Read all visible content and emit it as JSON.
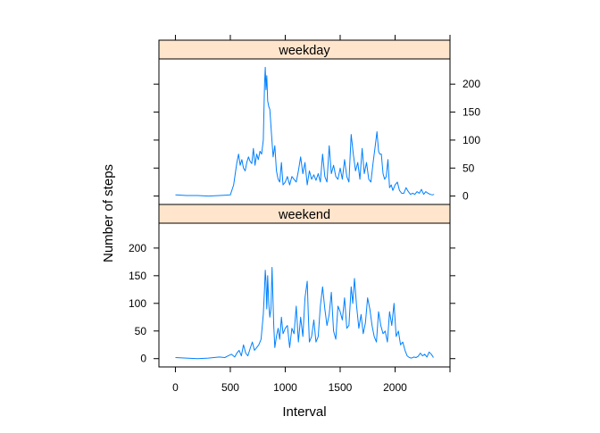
{
  "chart_data": {
    "type": "line",
    "layout": "lattice-two-panels-stacked",
    "xlabel": "Interval",
    "ylabel": "Number of steps",
    "xlim": [
      -150,
      2500
    ],
    "ylim": [
      -15,
      245
    ],
    "x_ticks": [
      0,
      500,
      1000,
      1500,
      2000
    ],
    "y_ticks": [
      0,
      50,
      100,
      150,
      200
    ],
    "colors": {
      "line": "#0080ff",
      "strip": "#ffe5cc"
    },
    "panels": [
      {
        "strip_label": "weekday",
        "x": [
          0,
          100,
          200,
          300,
          400,
          500,
          530,
          545,
          560,
          575,
          590,
          605,
          620,
          635,
          650,
          665,
          680,
          695,
          710,
          725,
          740,
          755,
          770,
          785,
          800,
          812,
          818,
          825,
          832,
          840,
          850,
          860,
          875,
          890,
          905,
          920,
          935,
          950,
          965,
          980,
          1000,
          1020,
          1040,
          1060,
          1080,
          1100,
          1120,
          1140,
          1160,
          1180,
          1200,
          1220,
          1240,
          1260,
          1280,
          1300,
          1320,
          1340,
          1360,
          1380,
          1400,
          1420,
          1440,
          1460,
          1480,
          1500,
          1520,
          1540,
          1560,
          1580,
          1600,
          1620,
          1640,
          1660,
          1680,
          1700,
          1720,
          1740,
          1760,
          1780,
          1800,
          1820,
          1835,
          1850,
          1860,
          1875,
          1890,
          1905,
          1920,
          1935,
          1950,
          1965,
          1980,
          2000,
          2020,
          2040,
          2060,
          2080,
          2100,
          2120,
          2140,
          2160,
          2180,
          2200,
          2220,
          2240,
          2260,
          2280,
          2300,
          2320,
          2340,
          2355
        ],
        "y": [
          2,
          1,
          1,
          0,
          1,
          2,
          20,
          40,
          60,
          75,
          55,
          65,
          50,
          45,
          60,
          70,
          62,
          58,
          85,
          55,
          75,
          65,
          80,
          75,
          100,
          200,
          230,
          190,
          215,
          170,
          160,
          155,
          110,
          70,
          90,
          45,
          30,
          25,
          60,
          20,
          25,
          35,
          20,
          35,
          30,
          25,
          45,
          70,
          40,
          60,
          20,
          45,
          30,
          38,
          28,
          40,
          25,
          75,
          35,
          25,
          90,
          40,
          55,
          35,
          30,
          50,
          30,
          65,
          35,
          25,
          110,
          75,
          45,
          60,
          30,
          85,
          40,
          60,
          30,
          25,
          60,
          90,
          115,
          80,
          75,
          75,
          40,
          30,
          35,
          65,
          15,
          20,
          10,
          20,
          25,
          10,
          5,
          5,
          15,
          8,
          3,
          5,
          3,
          8,
          5,
          12,
          3,
          8,
          5,
          3,
          2,
          3
        ]
      },
      {
        "strip_label": "weekend",
        "x": [
          0,
          100,
          200,
          300,
          400,
          450,
          480,
          510,
          540,
          560,
          580,
          600,
          620,
          640,
          660,
          680,
          700,
          720,
          740,
          760,
          780,
          800,
          810,
          818,
          825,
          832,
          840,
          850,
          860,
          870,
          880,
          895,
          905,
          920,
          935,
          950,
          965,
          980,
          1000,
          1020,
          1040,
          1060,
          1080,
          1100,
          1120,
          1140,
          1160,
          1180,
          1200,
          1210,
          1220,
          1240,
          1260,
          1280,
          1300,
          1320,
          1340,
          1360,
          1380,
          1400,
          1420,
          1440,
          1460,
          1480,
          1500,
          1520,
          1540,
          1560,
          1580,
          1600,
          1615,
          1630,
          1650,
          1670,
          1690,
          1710,
          1730,
          1750,
          1770,
          1790,
          1810,
          1830,
          1850,
          1870,
          1890,
          1910,
          1930,
          1950,
          1970,
          1990,
          2000,
          2010,
          2030,
          2050,
          2070,
          2090,
          2110,
          2130,
          2150,
          2170,
          2190,
          2210,
          2230,
          2250,
          2270,
          2290,
          2310,
          2330,
          2350
        ],
        "y": [
          2,
          1,
          0,
          1,
          3,
          2,
          5,
          8,
          3,
          10,
          15,
          5,
          25,
          10,
          5,
          18,
          30,
          15,
          20,
          25,
          35,
          80,
          120,
          160,
          140,
          90,
          150,
          100,
          75,
          90,
          165,
          60,
          20,
          40,
          55,
          35,
          75,
          45,
          55,
          60,
          20,
          55,
          45,
          95,
          30,
          75,
          40,
          110,
          140,
          80,
          30,
          40,
          70,
          30,
          40,
          95,
          130,
          90,
          60,
          80,
          120,
          50,
          35,
          95,
          85,
          70,
          110,
          55,
          60,
          130,
          100,
          145,
          95,
          55,
          80,
          45,
          65,
          110,
          90,
          60,
          40,
          30,
          85,
          60,
          45,
          50,
          30,
          85,
          60,
          100,
          70,
          40,
          50,
          25,
          30,
          15,
          5,
          2,
          1,
          3,
          2,
          4,
          10,
          5,
          8,
          3,
          12,
          8,
          2
        ]
      }
    ]
  }
}
